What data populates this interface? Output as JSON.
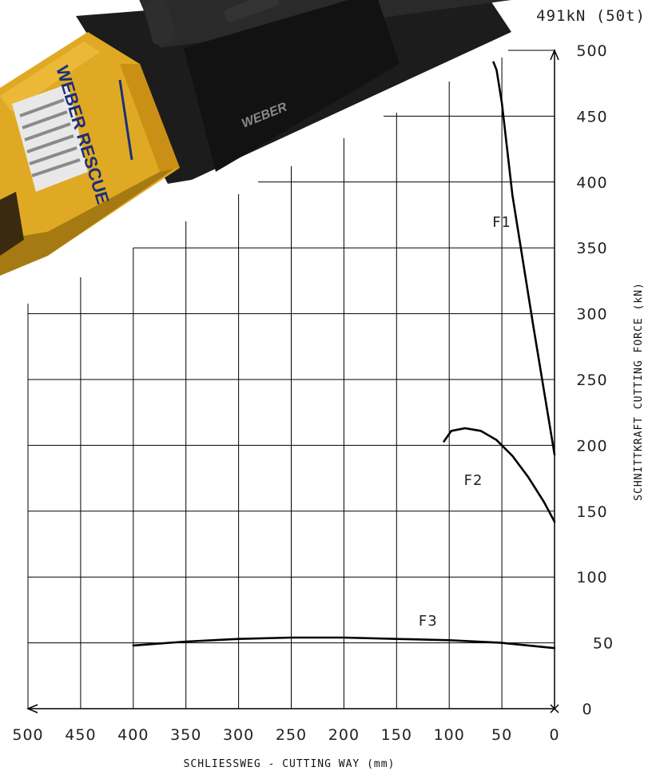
{
  "chart_data": {
    "type": "line",
    "max_force_label": "491kN (50t)",
    "xlabel": "SCHLIESSWEG - CUTTING WAY (mm)",
    "ylabel": "SCHNITTKRAFT CUTTING FORCE (kN)",
    "xlim": [
      500,
      0
    ],
    "ylim": [
      0,
      500
    ],
    "x_ticks": [
      "500",
      "450",
      "400",
      "350",
      "300",
      "250",
      "200",
      "150",
      "100",
      "50",
      "0"
    ],
    "y_ticks": [
      "0",
      "50",
      "100",
      "150",
      "200",
      "250",
      "300",
      "350",
      "400",
      "450",
      "500"
    ],
    "series": [
      {
        "name": "F1",
        "x": [
          58,
          55,
          50,
          40,
          20,
          0
        ],
        "y": [
          491,
          485,
          460,
          390,
          290,
          193
        ]
      },
      {
        "name": "F2",
        "x": [
          105,
          98,
          85,
          70,
          55,
          40,
          25,
          10,
          0
        ],
        "y": [
          203,
          211,
          213,
          211,
          204,
          192,
          176,
          157,
          142
        ]
      },
      {
        "name": "F3",
        "x": [
          400,
          350,
          300,
          250,
          200,
          150,
          100,
          50,
          0
        ],
        "y": [
          48,
          51,
          53,
          54,
          54,
          53,
          52,
          50,
          46
        ]
      }
    ]
  },
  "image": {
    "description_icon": "weber-rescue-cutter-photo",
    "brand_text": "WEBER RESCUE",
    "brand_text_dark": "WEBER"
  }
}
